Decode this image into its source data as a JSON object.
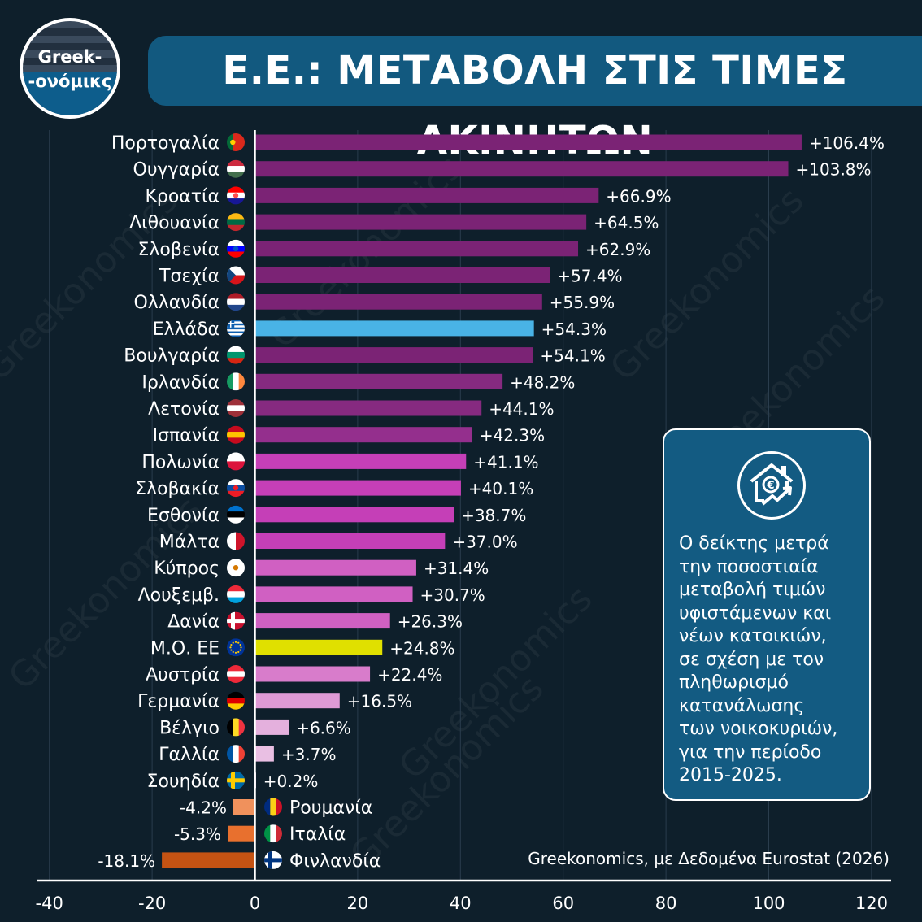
{
  "brand": {
    "logo_line1": "Greek-",
    "logo_line2": "-ονόμικς",
    "watermark": "Greekonomics"
  },
  "title": "Ε.Ε.: ΜΕΤΑΒΟΛΗ ΣΤΙΣ ΤΙΜΕΣ ΑΚΙΝΗΤΩΝ",
  "info_box": {
    "icon": "house-euro-growth-icon",
    "lines": [
      "Ο δείκτης μετρά",
      "την ποσοστιαία",
      "μεταβολή τιμών",
      "υφιστάμενων και",
      "νέων κατοικιών,",
      "σε σχέση με τον",
      "πληθωρισμό",
      "κατανάλωσης",
      "των νοικοκυριών,",
      "για την περίοδο",
      "2015-2025."
    ]
  },
  "source": "Greekonomics, με Δεδομένα Eurostat (2026)",
  "chart_data": {
    "type": "bar",
    "orientation": "horizontal",
    "xlim": [
      -40,
      120
    ],
    "x_ticks": [
      -40,
      -20,
      0,
      20,
      40,
      60,
      80,
      100,
      120
    ],
    "grid": true,
    "categories": [
      "Πορτογαλία",
      "Ουγγαρία",
      "Κροατία",
      "Λιθουανία",
      "Σλοβενία",
      "Τσεχία",
      "Ολλανδία",
      "Ελλάδα",
      "Βουλγαρία",
      "Ιρλανδία",
      "Λετονία",
      "Ισπανία",
      "Πολωνία",
      "Σλοβακία",
      "Εσθονία",
      "Μάλτα",
      "Κύπρος",
      "Λουξεμβ.",
      "Δανία",
      "Μ.Ο. ΕΕ",
      "Αυστρία",
      "Γερμανία",
      "Βέλγιο",
      "Γαλλία",
      "Σουηδία",
      "Ρουμανία",
      "Ιταλία",
      "Φινλανδία"
    ],
    "values": [
      106.4,
      103.8,
      66.9,
      64.5,
      62.9,
      57.4,
      55.9,
      54.3,
      54.1,
      48.2,
      44.1,
      42.3,
      41.1,
      40.1,
      38.7,
      37.0,
      31.4,
      30.7,
      26.3,
      24.8,
      22.4,
      16.5,
      6.6,
      3.7,
      0.2,
      -4.2,
      -5.3,
      -18.1
    ],
    "value_labels": [
      "+106.4%",
      "+103.8%",
      "+66.9%",
      "+64.5%",
      "+62.9%",
      "+57.4%",
      "+55.9%",
      "+54.3%",
      "+54.1%",
      "+48.2%",
      "+44.1%",
      "+42.3%",
      "+41.1%",
      "+40.1%",
      "+38.7%",
      "+37.0%",
      "+31.4%",
      "+30.7%",
      "+26.3%",
      "+24.8%",
      "+22.4%",
      "+16.5%",
      "+6.6%",
      "+3.7%",
      "+0.2%",
      "-4.2%",
      "-5.3%",
      "-18.1%"
    ],
    "colors": [
      "#7b2375",
      "#7b2375",
      "#7b2375",
      "#7b2375",
      "#7b2375",
      "#7b2375",
      "#7b2375",
      "#49b3e6",
      "#7b2375",
      "#862a80",
      "#862a80",
      "#942f8d",
      "#c53fb7",
      "#c53fb7",
      "#c53fb7",
      "#c53fb7",
      "#d060c2",
      "#d060c2",
      "#d060c2",
      "#e0e000",
      "#d87ccb",
      "#de9ad5",
      "#e4b0dd",
      "#e9bfe3",
      "#ecc9e7",
      "#f0915c",
      "#e8702e",
      "#c55313"
    ],
    "highlight": {
      "Ελλάδα": "#49b3e6",
      "Μ.Ο. ΕΕ": "#e0e000"
    },
    "flags": [
      "portugal-flag-icon",
      "hungary-flag-icon",
      "croatia-flag-icon",
      "lithuania-flag-icon",
      "slovenia-flag-icon",
      "czechia-flag-icon",
      "netherlands-flag-icon",
      "greece-flag-icon",
      "bulgaria-flag-icon",
      "ireland-flag-icon",
      "latvia-flag-icon",
      "spain-flag-icon",
      "poland-flag-icon",
      "slovakia-flag-icon",
      "estonia-flag-icon",
      "malta-flag-icon",
      "cyprus-flag-icon",
      "luxembourg-flag-icon",
      "denmark-flag-icon",
      "eu-flag-icon",
      "austria-flag-icon",
      "germany-flag-icon",
      "belgium-flag-icon",
      "france-flag-icon",
      "sweden-flag-icon",
      "romania-flag-icon",
      "italy-flag-icon",
      "finland-flag-icon"
    ]
  }
}
